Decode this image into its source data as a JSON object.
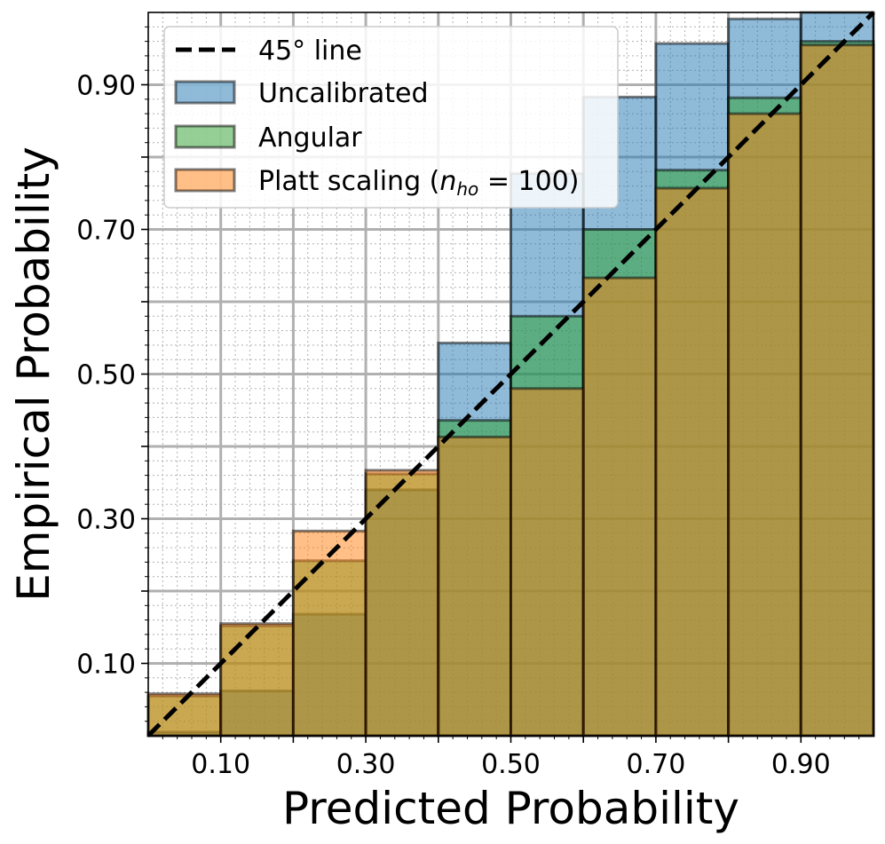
{
  "chart_data": {
    "type": "bar",
    "title": "",
    "xlabel": "Predicted Probability",
    "ylabel": "Empirical Probability",
    "xlim": [
      0,
      1
    ],
    "ylim": [
      0,
      1
    ],
    "bin_edges": [
      0,
      0.1,
      0.2,
      0.3,
      0.4,
      0.5,
      0.6,
      0.7,
      0.8,
      0.9,
      1.0
    ],
    "xticks": [
      "0.10",
      "0.30",
      "0.50",
      "0.70",
      "0.90"
    ],
    "yticks": [
      "0.10",
      "0.30",
      "0.50",
      "0.70",
      "0.90"
    ],
    "grid": true,
    "legend_position": "top-left",
    "reference_line": {
      "name": "45° line",
      "style": "dashed",
      "color": "#000000"
    },
    "series": [
      {
        "name": "Uncalibrated",
        "color": "#1f77b4",
        "values": [
          0.005,
          0.062,
          0.168,
          0.34,
          0.543,
          0.777,
          0.883,
          0.957,
          0.991,
          1.0
        ]
      },
      {
        "name": "Angular",
        "color": "#2ca02c",
        "values": [
          0.055,
          0.152,
          0.242,
          0.362,
          0.436,
          0.58,
          0.7,
          0.782,
          0.882,
          0.96
        ]
      },
      {
        "name": "Platt scaling",
        "name_subscript": "ho",
        "name_suffix": " = 100)",
        "color": "#ff7f0e",
        "values": [
          0.058,
          0.155,
          0.283,
          0.367,
          0.413,
          0.48,
          0.633,
          0.757,
          0.86,
          0.955
        ]
      }
    ]
  }
}
